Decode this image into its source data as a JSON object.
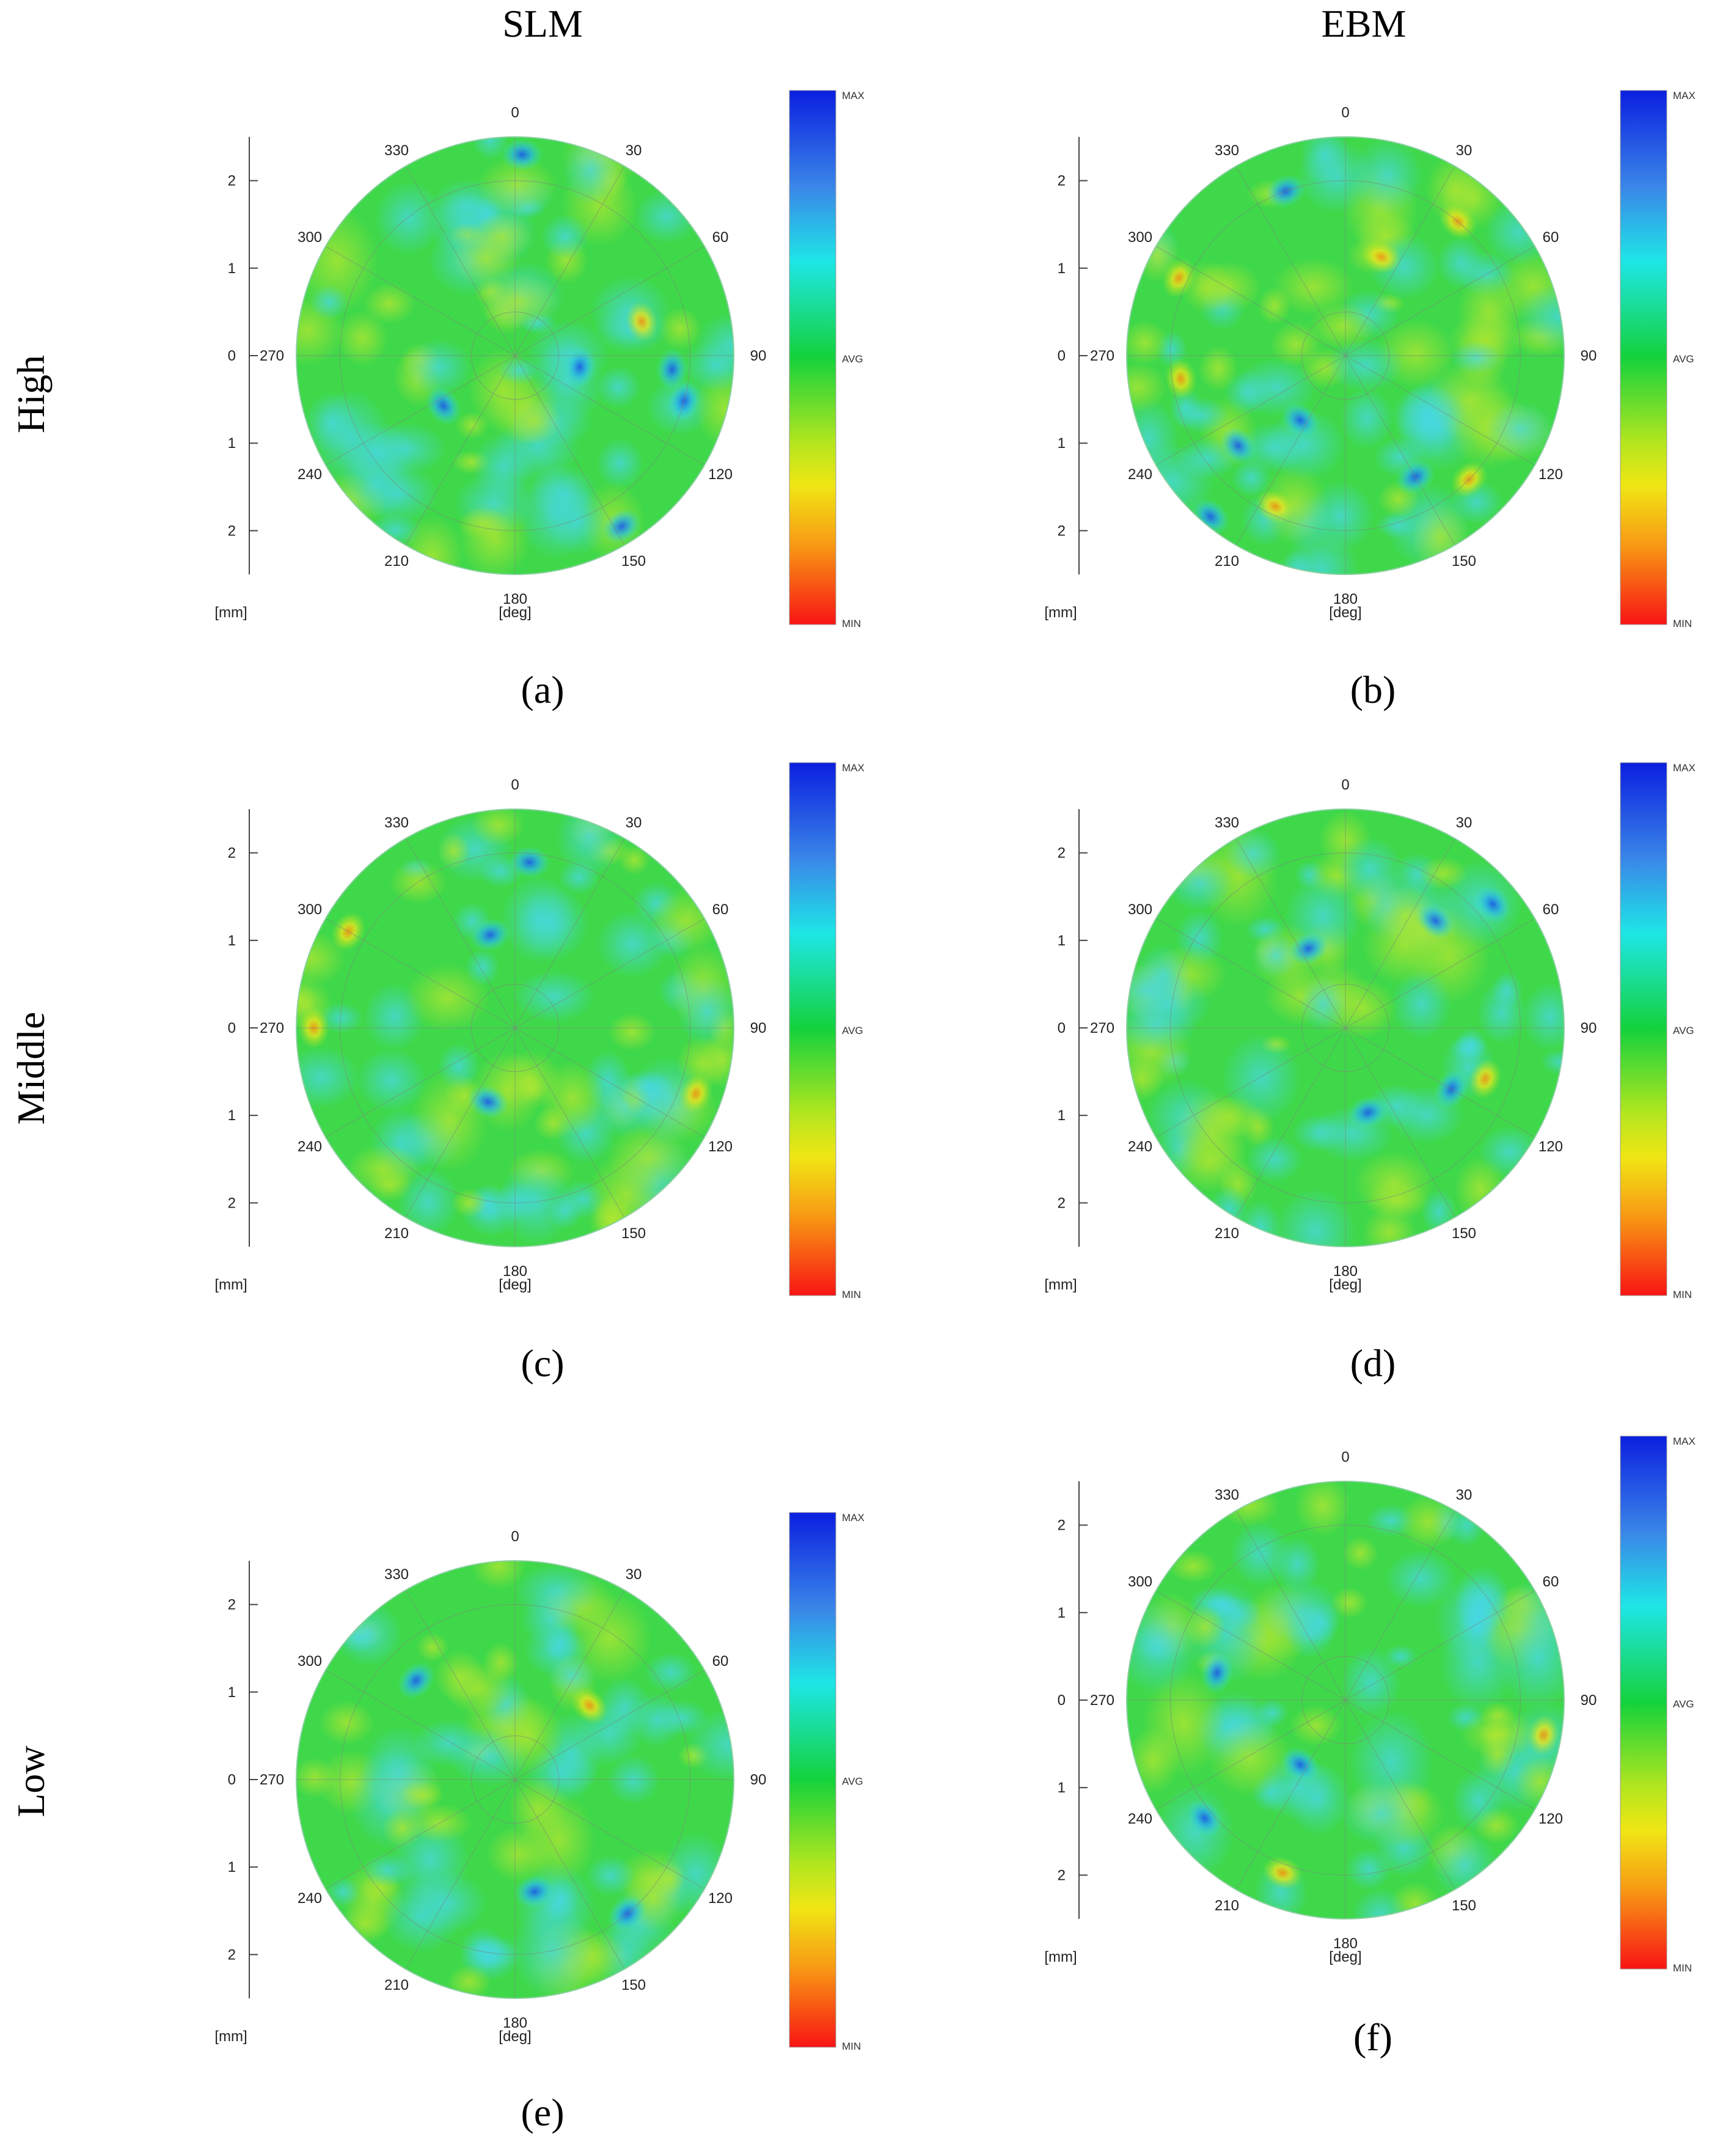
{
  "columns": [
    "SLM",
    "EBM"
  ],
  "rows": [
    "High",
    "Middle",
    "Low"
  ],
  "chart_data": [
    {
      "type": "heatmap",
      "subtype": "polar-contour-map",
      "caption": "(a)",
      "process": "SLM",
      "level": "High",
      "angle_ticks": [
        "0",
        "30",
        "60",
        "90",
        "120",
        "150",
        "180",
        "210",
        "240",
        "270",
        "300",
        "330"
      ],
      "angle_label": "[deg]",
      "radial_ticks": [
        "2",
        "1",
        "0",
        "1",
        "2"
      ],
      "radial_label": "[mm]",
      "colorbar": {
        "max_label": "MAX",
        "avg_label": "AVG",
        "min_label": "MIN"
      },
      "hotspots": [
        {
          "angle_deg": 100,
          "r_mm": 0.75,
          "level": "high"
        },
        {
          "angle_deg": 75,
          "r_mm": 1.5,
          "level": "low"
        },
        {
          "angle_deg": 148,
          "r_mm": 2.3,
          "level": "high"
        },
        {
          "angle_deg": 95,
          "r_mm": 1.8,
          "level": "high"
        },
        {
          "angle_deg": 105,
          "r_mm": 2.0,
          "level": "high"
        },
        {
          "angle_deg": 2,
          "r_mm": 2.3,
          "level": "high"
        },
        {
          "angle_deg": 235,
          "r_mm": 1.0,
          "level": "high"
        }
      ]
    },
    {
      "type": "heatmap",
      "subtype": "polar-contour-map",
      "caption": "(b)",
      "process": "EBM",
      "level": "High",
      "angle_ticks": [
        "0",
        "30",
        "60",
        "90",
        "120",
        "150",
        "180",
        "210",
        "240",
        "270",
        "300",
        "330"
      ],
      "angle_label": "[deg]",
      "radial_ticks": [
        "2",
        "1",
        "0",
        "1",
        "2"
      ],
      "radial_label": "[mm]",
      "colorbar": {
        "max_label": "MAX",
        "avg_label": "AVG",
        "min_label": "MIN"
      },
      "hotspots": [
        {
          "angle_deg": 40,
          "r_mm": 2.0,
          "level": "low"
        },
        {
          "angle_deg": 295,
          "r_mm": 2.1,
          "level": "low"
        },
        {
          "angle_deg": 262,
          "r_mm": 1.9,
          "level": "low"
        },
        {
          "angle_deg": 135,
          "r_mm": 2.0,
          "level": "low"
        },
        {
          "angle_deg": 205,
          "r_mm": 1.9,
          "level": "low"
        },
        {
          "angle_deg": 215,
          "r_mm": 0.9,
          "level": "high"
        },
        {
          "angle_deg": 220,
          "r_mm": 2.4,
          "level": "high"
        },
        {
          "angle_deg": 230,
          "r_mm": 1.6,
          "level": "high"
        },
        {
          "angle_deg": 340,
          "r_mm": 2.0,
          "level": "high"
        },
        {
          "angle_deg": 150,
          "r_mm": 1.6,
          "level": "high"
        },
        {
          "angle_deg": 20,
          "r_mm": 1.2,
          "level": "low"
        }
      ]
    },
    {
      "type": "heatmap",
      "subtype": "polar-contour-map",
      "caption": "(c)",
      "process": "SLM",
      "level": "Middle",
      "angle_ticks": [
        "0",
        "30",
        "60",
        "90",
        "120",
        "150",
        "180",
        "210",
        "240",
        "270",
        "300",
        "330"
      ],
      "angle_label": "[deg]",
      "radial_ticks": [
        "2",
        "1",
        "0",
        "1",
        "2"
      ],
      "radial_label": "[mm]",
      "colorbar": {
        "max_label": "MAX",
        "avg_label": "AVG",
        "min_label": "MIN"
      },
      "hotspots": [
        {
          "angle_deg": 300,
          "r_mm": 2.2,
          "level": "low"
        },
        {
          "angle_deg": 5,
          "r_mm": 1.9,
          "level": "high"
        },
        {
          "angle_deg": 345,
          "r_mm": 1.1,
          "level": "high"
        },
        {
          "angle_deg": 200,
          "r_mm": 0.9,
          "level": "high"
        },
        {
          "angle_deg": 110,
          "r_mm": 2.2,
          "level": "low"
        },
        {
          "angle_deg": 270,
          "r_mm": 2.3,
          "level": "low"
        }
      ]
    },
    {
      "type": "heatmap",
      "subtype": "polar-contour-map",
      "caption": "(d)",
      "process": "EBM",
      "level": "Middle",
      "angle_ticks": [
        "0",
        "30",
        "60",
        "90",
        "120",
        "150",
        "180",
        "210",
        "240",
        "270",
        "300",
        "330"
      ],
      "angle_label": "[deg]",
      "radial_ticks": [
        "2",
        "1",
        "0",
        "1",
        "2"
      ],
      "radial_label": "[mm]",
      "colorbar": {
        "max_label": "MAX",
        "avg_label": "AVG",
        "min_label": "MIN"
      },
      "hotspots": [
        {
          "angle_deg": 50,
          "r_mm": 2.2,
          "level": "high"
        },
        {
          "angle_deg": 40,
          "r_mm": 1.6,
          "level": "high"
        },
        {
          "angle_deg": 110,
          "r_mm": 1.7,
          "level": "low"
        },
        {
          "angle_deg": 120,
          "r_mm": 1.4,
          "level": "high"
        },
        {
          "angle_deg": 335,
          "r_mm": 1.0,
          "level": "high"
        },
        {
          "angle_deg": 165,
          "r_mm": 1.0,
          "level": "high"
        }
      ]
    },
    {
      "type": "heatmap",
      "subtype": "polar-contour-map",
      "caption": "(e)",
      "process": "SLM",
      "level": "Low",
      "angle_ticks": [
        "0",
        "30",
        "60",
        "90",
        "120",
        "150",
        "180",
        "210",
        "240",
        "270",
        "300",
        "330"
      ],
      "angle_label": "[deg]",
      "radial_ticks": [
        "2",
        "1",
        "0",
        "1",
        "2"
      ],
      "radial_label": "[mm]",
      "colorbar": {
        "max_label": "MAX",
        "avg_label": "AVG",
        "min_label": "MIN"
      },
      "hotspots": [
        {
          "angle_deg": 140,
          "r_mm": 2.0,
          "level": "high"
        },
        {
          "angle_deg": 170,
          "r_mm": 1.3,
          "level": "high"
        },
        {
          "angle_deg": 315,
          "r_mm": 1.6,
          "level": "high"
        },
        {
          "angle_deg": 45,
          "r_mm": 1.2,
          "level": "low"
        }
      ]
    },
    {
      "type": "heatmap",
      "subtype": "polar-contour-map",
      "caption": "(f)",
      "process": "EBM",
      "level": "Low",
      "angle_ticks": [
        "0",
        "30",
        "60",
        "90",
        "120",
        "150",
        "180",
        "210",
        "240",
        "270",
        "300",
        "330"
      ],
      "angle_label": "[deg]",
      "radial_ticks": [
        "2",
        "1",
        "0",
        "1",
        "2"
      ],
      "radial_label": "[mm]",
      "colorbar": {
        "max_label": "MAX",
        "avg_label": "AVG",
        "min_label": "MIN"
      },
      "hotspots": [
        {
          "angle_deg": 282,
          "r_mm": 1.5,
          "level": "high"
        },
        {
          "angle_deg": 215,
          "r_mm": 0.9,
          "level": "high"
        },
        {
          "angle_deg": 200,
          "r_mm": 2.1,
          "level": "low"
        },
        {
          "angle_deg": 100,
          "r_mm": 2.3,
          "level": "low"
        },
        {
          "angle_deg": 230,
          "r_mm": 2.1,
          "level": "high"
        }
      ]
    }
  ]
}
